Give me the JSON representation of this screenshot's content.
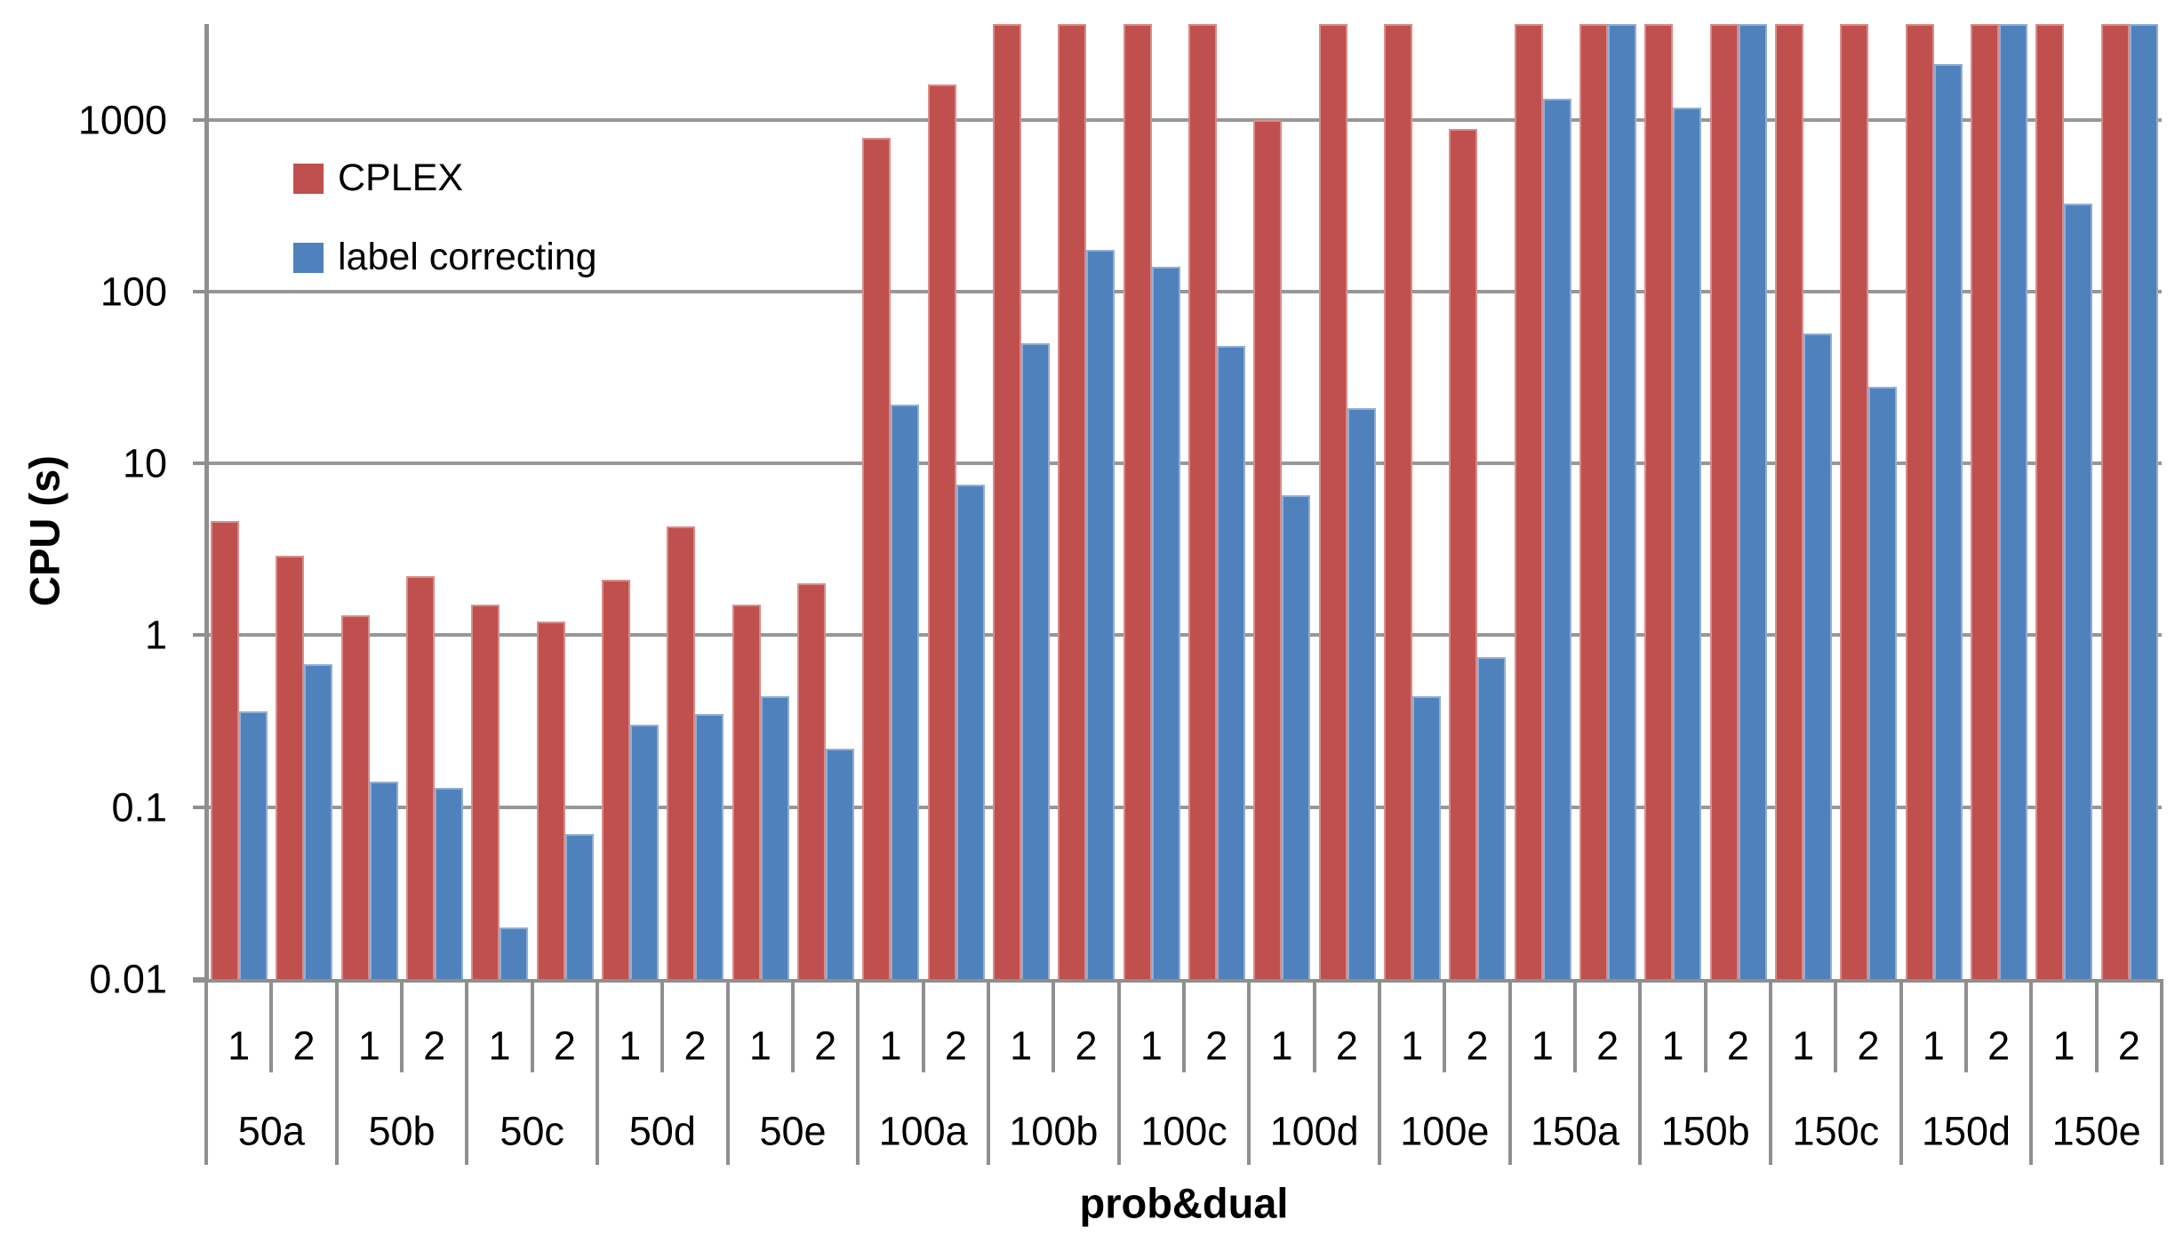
{
  "chart_data": {
    "type": "bar",
    "title": "",
    "ylabel": "CPU (s)",
    "xlabel": "prob&dual",
    "yscale": "log",
    "ylim": [
      0.01,
      3600
    ],
    "ytick_labels": [
      "1000",
      "100",
      "10",
      "1",
      "0.1",
      "0.01"
    ],
    "grid": true,
    "legend_position": "top-left-inside",
    "groups": [
      "50a",
      "50b",
      "50c",
      "50d",
      "50e",
      "100a",
      "100b",
      "100c",
      "100d",
      "100e",
      "150a",
      "150b",
      "150c",
      "150d",
      "150e"
    ],
    "subcategories": [
      "1",
      "2"
    ],
    "series": [
      {
        "name": "CPLEX",
        "color": "#c0504d",
        "values": [
          4.6,
          2.9,
          1.3,
          2.2,
          1.5,
          1.2,
          2.1,
          4.3,
          1.5,
          2.0,
          780,
          1600,
          3600,
          3600,
          3600,
          3600,
          1000,
          3600,
          3600,
          880,
          3600,
          3600,
          3600,
          3600,
          3600,
          3600,
          3600,
          3600,
          3600,
          3600
        ]
      },
      {
        "name": "label correcting",
        "color": "#4f81bd",
        "values": [
          0.36,
          0.68,
          0.14,
          0.13,
          0.02,
          0.07,
          0.3,
          0.35,
          0.44,
          0.22,
          22,
          7.5,
          50,
          175,
          140,
          48,
          6.5,
          21,
          0.44,
          0.75,
          1330,
          3600,
          1170,
          3600,
          57,
          28,
          2100,
          3600,
          325,
          3600
        ]
      }
    ]
  }
}
